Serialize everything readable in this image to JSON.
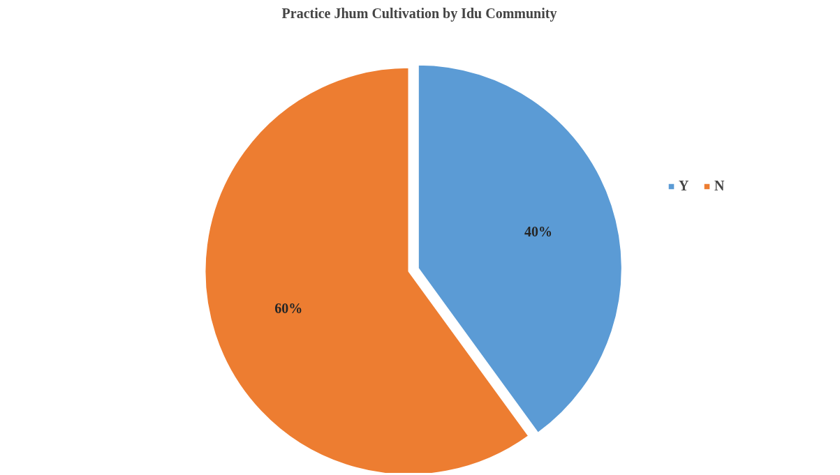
{
  "chart_data": {
    "type": "pie",
    "title": "Practice Jhum Cultivation by Idu Community",
    "categories": [
      "Y",
      "N"
    ],
    "values": [
      40,
      60
    ],
    "colors": [
      "#5b9bd5",
      "#ed7d31"
    ],
    "value_labels": [
      "40%",
      "60%"
    ],
    "legend": "right"
  }
}
